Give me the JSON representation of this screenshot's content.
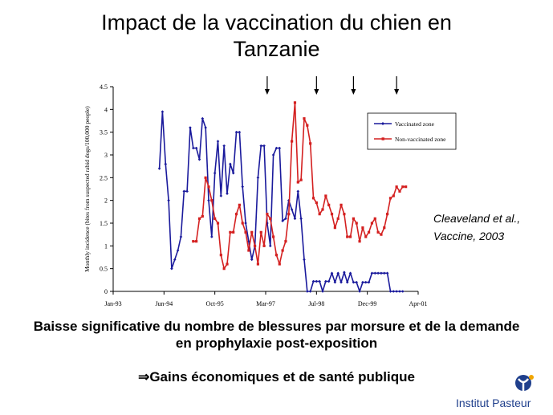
{
  "title": {
    "line1": "Impact de la vaccination du chien en",
    "line2": "Tanzanie"
  },
  "citation": {
    "line1": "Cleaveland et al.,",
    "line2": "Vaccine, 2003"
  },
  "conclusion": {
    "line1": "Baisse significative du nombre de blessures par morsure et de la demande",
    "line2": "en prophylaxie post-exposition"
  },
  "gains": {
    "arrow": "⇒",
    "text": "Gains économiques et de santé publique"
  },
  "logo": {
    "text": "Institut Pasteur",
    "color": "#1f3f8c",
    "accent": "#f0a500"
  },
  "chart_data": {
    "type": "line",
    "title": "",
    "xlabel": "",
    "ylabel": "Monthly incidence (bites from suspected rabid dogs/100,000 people)",
    "ylim": [
      0,
      4.5
    ],
    "yticks": [
      "0",
      "0.5",
      "1",
      "1.5",
      "2",
      "2.5",
      "3",
      "3.5",
      "4",
      "4.5"
    ],
    "xticks": [
      "Jan-93",
      "Jun-94",
      "Oct-95",
      "Mar-97",
      "Jul-98",
      "Dec-99",
      "Apr-01"
    ],
    "xrange_months": [
      0,
      99
    ],
    "grid": false,
    "legend_position": "top-right",
    "vaccination_arrow_months": [
      50,
      66,
      78,
      92
    ],
    "series": [
      {
        "name": "Vaccinated zone",
        "color": "#1a1a9c",
        "x": [
          15,
          16,
          17,
          18,
          19,
          20,
          21,
          22,
          23,
          24,
          25,
          26,
          27,
          28,
          29,
          30,
          31,
          32,
          33,
          34,
          35,
          36,
          37,
          38,
          39,
          40,
          41,
          42,
          43,
          44,
          45,
          46,
          47,
          48,
          49,
          50,
          51,
          52,
          53,
          54,
          55,
          56,
          57,
          58,
          59,
          60,
          61,
          62,
          63,
          64,
          65,
          66,
          67,
          68,
          69,
          70,
          71,
          72,
          73,
          74,
          75,
          76,
          77,
          78,
          79,
          80,
          81,
          82,
          83,
          84,
          85,
          86,
          87,
          88,
          89,
          90,
          91,
          92,
          93,
          94
        ],
        "values": [
          2.7,
          3.95,
          2.8,
          2.0,
          0.5,
          0.7,
          0.9,
          1.2,
          2.2,
          2.2,
          3.6,
          3.15,
          3.15,
          2.9,
          3.8,
          3.6,
          2.0,
          1.2,
          2.6,
          3.3,
          2.1,
          3.2,
          2.15,
          2.8,
          2.6,
          3.5,
          3.5,
          2.3,
          1.5,
          1.1,
          0.7,
          1.0,
          2.5,
          3.2,
          3.2,
          1.5,
          1.0,
          3.0,
          3.15,
          3.15,
          1.55,
          1.6,
          2.0,
          1.8,
          1.6,
          2.2,
          1.6,
          0.7,
          0.0,
          0.0,
          0.22,
          0.22,
          0.22,
          0.0,
          0.22,
          0.22,
          0.4,
          0.2,
          0.4,
          0.2,
          0.42,
          0.2,
          0.4,
          0.2,
          0.2,
          0.0,
          0.2,
          0.2,
          0.2,
          0.4,
          0.4,
          0.4,
          0.4,
          0.4,
          0.4,
          0.0,
          0.0,
          0.0,
          0.0,
          0.0
        ]
      },
      {
        "name": "Non-vaccinated zone",
        "color": "#d42020",
        "x": [
          26,
          27,
          28,
          29,
          30,
          31,
          32,
          33,
          34,
          35,
          36,
          37,
          38,
          39,
          40,
          41,
          42,
          43,
          44,
          45,
          46,
          47,
          48,
          49,
          50,
          51,
          52,
          53,
          54,
          55,
          56,
          57,
          58,
          59,
          60,
          61,
          62,
          63,
          64,
          65,
          66,
          67,
          68,
          69,
          70,
          71,
          72,
          73,
          74,
          75,
          76,
          77,
          78,
          79,
          80,
          81,
          82,
          83,
          84,
          85,
          86,
          87,
          88,
          89,
          90,
          91,
          92,
          93,
          94,
          95
        ],
        "values": [
          1.1,
          1.1,
          1.6,
          1.65,
          2.5,
          2.3,
          2.0,
          1.6,
          1.5,
          0.8,
          0.5,
          0.6,
          1.3,
          1.3,
          1.7,
          1.9,
          1.5,
          1.3,
          0.9,
          1.3,
          1.0,
          0.6,
          1.3,
          1.0,
          1.7,
          1.6,
          1.2,
          0.8,
          0.6,
          0.9,
          1.1,
          1.7,
          3.3,
          4.15,
          2.4,
          2.45,
          3.8,
          3.65,
          3.25,
          2.05,
          1.95,
          1.7,
          1.8,
          2.1,
          1.9,
          1.7,
          1.4,
          1.6,
          1.9,
          1.7,
          1.2,
          1.2,
          1.6,
          1.5,
          1.1,
          1.4,
          1.2,
          1.3,
          1.5,
          1.6,
          1.3,
          1.25,
          1.4,
          1.7,
          2.05,
          2.1,
          2.3,
          2.2,
          2.3,
          2.3
        ]
      }
    ]
  }
}
